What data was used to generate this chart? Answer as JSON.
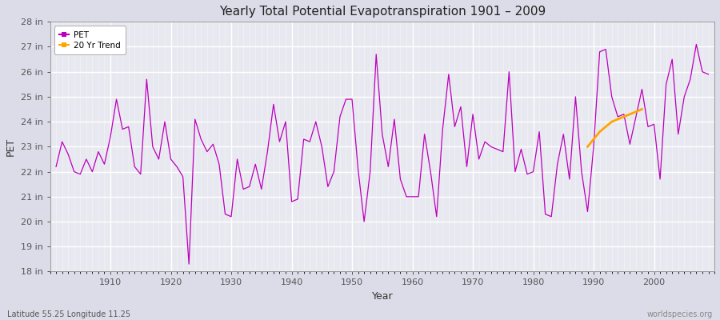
{
  "title": "Yearly Total Potential Evapotranspiration 1901 – 2009",
  "xlabel": "Year",
  "ylabel": "PET",
  "subtitle_left": "Latitude 55.25 Longitude 11.25",
  "subtitle_right": "worldspecies.org",
  "pet_color": "#bb00bb",
  "trend_color": "#FFA500",
  "bg_color": "#dcdce8",
  "plot_bg_color": "#e8e8f0",
  "ylim": [
    18,
    28
  ],
  "ytick_labels": [
    "18 in",
    "19 in",
    "20 in",
    "21 in",
    "22 in",
    "23 in",
    "24 in",
    "25 in",
    "26 in",
    "27 in",
    "28 in"
  ],
  "ytick_values": [
    18,
    19,
    20,
    21,
    22,
    23,
    24,
    25,
    26,
    27,
    28
  ],
  "years": [
    1901,
    1902,
    1903,
    1904,
    1905,
    1906,
    1907,
    1908,
    1909,
    1910,
    1911,
    1912,
    1913,
    1914,
    1915,
    1916,
    1917,
    1918,
    1919,
    1920,
    1921,
    1922,
    1923,
    1924,
    1925,
    1926,
    1927,
    1928,
    1929,
    1930,
    1931,
    1932,
    1933,
    1934,
    1935,
    1936,
    1937,
    1938,
    1939,
    1940,
    1941,
    1942,
    1943,
    1944,
    1945,
    1946,
    1947,
    1948,
    1949,
    1950,
    1951,
    1952,
    1953,
    1954,
    1955,
    1956,
    1957,
    1958,
    1959,
    1960,
    1961,
    1962,
    1963,
    1964,
    1965,
    1966,
    1967,
    1968,
    1969,
    1970,
    1971,
    1972,
    1973,
    1974,
    1975,
    1976,
    1977,
    1978,
    1979,
    1980,
    1981,
    1982,
    1983,
    1984,
    1985,
    1986,
    1987,
    1988,
    1989,
    1990,
    1991,
    1992,
    1993,
    1994,
    1995,
    1996,
    1997,
    1998,
    1999,
    2000,
    2001,
    2002,
    2003,
    2004,
    2005,
    2006,
    2007,
    2008,
    2009
  ],
  "pet_values": [
    22.2,
    23.2,
    22.7,
    22.0,
    21.9,
    22.5,
    22.0,
    22.8,
    22.3,
    23.4,
    24.9,
    23.7,
    23.8,
    22.2,
    21.9,
    25.7,
    23.0,
    22.5,
    24.0,
    22.5,
    22.2,
    21.8,
    18.3,
    24.1,
    23.3,
    22.8,
    23.1,
    22.3,
    20.3,
    20.2,
    22.5,
    21.3,
    21.4,
    22.3,
    21.3,
    22.8,
    24.7,
    23.2,
    24.0,
    20.8,
    20.9,
    23.3,
    23.2,
    24.0,
    23.0,
    21.4,
    22.0,
    24.2,
    24.9,
    24.9,
    22.1,
    20.0,
    22.0,
    26.7,
    23.5,
    22.2,
    24.1,
    21.7,
    21.0,
    21.0,
    21.0,
    23.5,
    22.0,
    20.2,
    23.7,
    25.9,
    23.8,
    24.6,
    22.2,
    24.3,
    22.5,
    23.2,
    23.0,
    22.9,
    22.8,
    26.0,
    22.0,
    22.9,
    21.9,
    22.0,
    23.6,
    20.3,
    20.2,
    22.3,
    23.5,
    21.7,
    25.0,
    22.0,
    20.4,
    23.0,
    26.8,
    26.9,
    25.0,
    24.2,
    24.3,
    23.1,
    24.2,
    25.3,
    23.8,
    23.9,
    21.7,
    25.5,
    26.5,
    23.5,
    25.0,
    25.7,
    27.1,
    26.0,
    25.9
  ],
  "trend_years": [
    1989,
    1990,
    1991,
    1992,
    1993,
    1994,
    1995,
    1996,
    1997,
    1998
  ],
  "trend_values": [
    23.0,
    23.3,
    23.6,
    23.8,
    24.0,
    24.1,
    24.2,
    24.3,
    24.4,
    24.5
  ]
}
